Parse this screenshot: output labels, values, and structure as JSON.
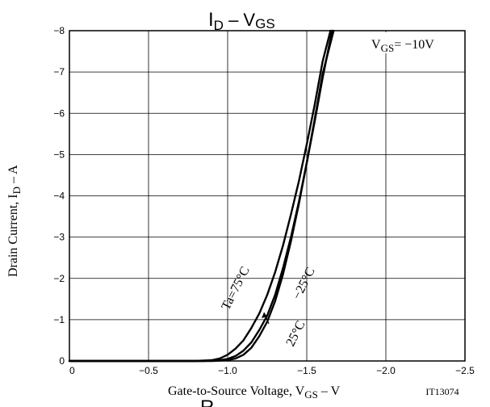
{
  "chart_data": {
    "type": "line",
    "title": {
      "main": "I",
      "sub1": "D",
      "sep": " – V",
      "sub2": "GS"
    },
    "xlabel": {
      "pre": "Gate-to-Source Voltage, V",
      "sub": "GS",
      "post": " – V"
    },
    "ylabel": {
      "pre": "Drain Current, I",
      "sub": "D",
      "post": " – A"
    },
    "condition": {
      "pre": "V",
      "sub": "GS",
      "post": "= −10V"
    },
    "code": "IT13074",
    "bottom_fragment": "R",
    "xlim": [
      0,
      -2.5
    ],
    "ylim": [
      0,
      -8
    ],
    "x_ticks": [
      0,
      -0.5,
      -1.0,
      -1.5,
      -2.0,
      -2.5
    ],
    "x_tick_labels": [
      "0",
      "−0.5",
      "−1.0",
      "−1.5",
      "−2.0",
      "−2.5"
    ],
    "y_ticks": [
      0,
      -1,
      -2,
      -3,
      -4,
      -5,
      -6,
      -7,
      -8
    ],
    "y_tick_labels": [
      "0",
      "−1",
      "−2",
      "−3",
      "−4",
      "−5",
      "−6",
      "−7",
      "−8"
    ],
    "grid": true,
    "series": [
      {
        "name": "Ta=75°C",
        "x": [
          0,
          -0.5,
          -0.8,
          -0.9,
          -0.95,
          -1.0,
          -1.05,
          -1.1,
          -1.15,
          -1.2,
          -1.25,
          -1.3,
          -1.35,
          -1.4,
          -1.45,
          -1.5,
          -1.55,
          -1.6,
          -1.65
        ],
        "y": [
          0,
          0,
          0,
          -0.02,
          -0.06,
          -0.15,
          -0.3,
          -0.5,
          -0.8,
          -1.15,
          -1.6,
          -2.15,
          -2.8,
          -3.55,
          -4.35,
          -5.25,
          -6.2,
          -7.25,
          -8.0
        ]
      },
      {
        "name": "25°C",
        "x": [
          0,
          -0.5,
          -0.85,
          -0.95,
          -1.0,
          -1.05,
          -1.1,
          -1.15,
          -1.2,
          -1.25,
          -1.3,
          -1.35,
          -1.4,
          -1.45,
          -1.5,
          -1.55,
          -1.6,
          -1.66
        ],
        "y": [
          0,
          0,
          0,
          -0.02,
          -0.05,
          -0.12,
          -0.25,
          -0.45,
          -0.75,
          -1.1,
          -1.6,
          -2.25,
          -3.0,
          -3.85,
          -4.8,
          -5.8,
          -6.85,
          -8.0
        ]
      },
      {
        "name": "−25°C",
        "x": [
          0,
          -0.5,
          -0.9,
          -1.0,
          -1.05,
          -1.1,
          -1.15,
          -1.2,
          -1.25,
          -1.3,
          -1.35,
          -1.4,
          -1.45,
          -1.5,
          -1.55,
          -1.6,
          -1.67
        ],
        "y": [
          0,
          0,
          0,
          -0.02,
          -0.06,
          -0.15,
          -0.32,
          -0.6,
          -0.95,
          -1.45,
          -2.1,
          -2.9,
          -3.8,
          -4.8,
          -5.85,
          -6.95,
          -8.0
        ]
      }
    ],
    "annotations": [
      "Ta=75°C",
      "25°C",
      "−25°C"
    ]
  }
}
